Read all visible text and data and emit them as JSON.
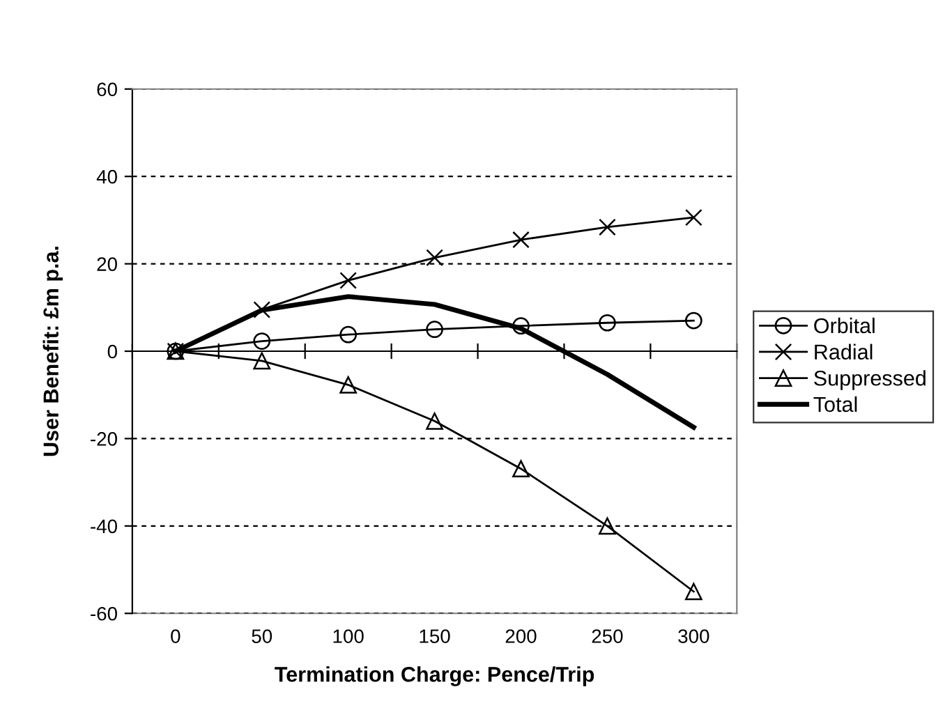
{
  "chart_data": {
    "type": "line",
    "xlabel": "Termination Charge: Pence/Trip",
    "ylabel": "User Benefit: £m p.a.",
    "categories": [
      "0",
      "50",
      "100",
      "150",
      "200",
      "250",
      "300"
    ],
    "series": [
      {
        "name": "Orbital",
        "color": "#000000",
        "marker": "circle",
        "values": [
          0,
          2.3,
          3.8,
          5.0,
          5.8,
          6.5,
          7.0
        ]
      },
      {
        "name": "Radial",
        "color": "#000000",
        "marker": "cross",
        "values": [
          0,
          9.5,
          16.2,
          21.4,
          25.5,
          28.4,
          30.6
        ]
      },
      {
        "name": "Suppressed",
        "color": "#000000",
        "marker": "triangle",
        "values": [
          0,
          -2.2,
          -7.7,
          -16.0,
          -26.9,
          -40.0,
          -55.0
        ]
      },
      {
        "name": "Total",
        "color": "#000000",
        "marker": "none",
        "values": [
          0,
          9.4,
          12.5,
          10.7,
          5.2,
          -5.3,
          -17.4
        ]
      }
    ],
    "ylim": [
      -60,
      60
    ],
    "yticks": [
      -60,
      -40,
      -20,
      0,
      20,
      40,
      60
    ],
    "grid": "y",
    "legend": "right",
    "line_style": "solid"
  }
}
